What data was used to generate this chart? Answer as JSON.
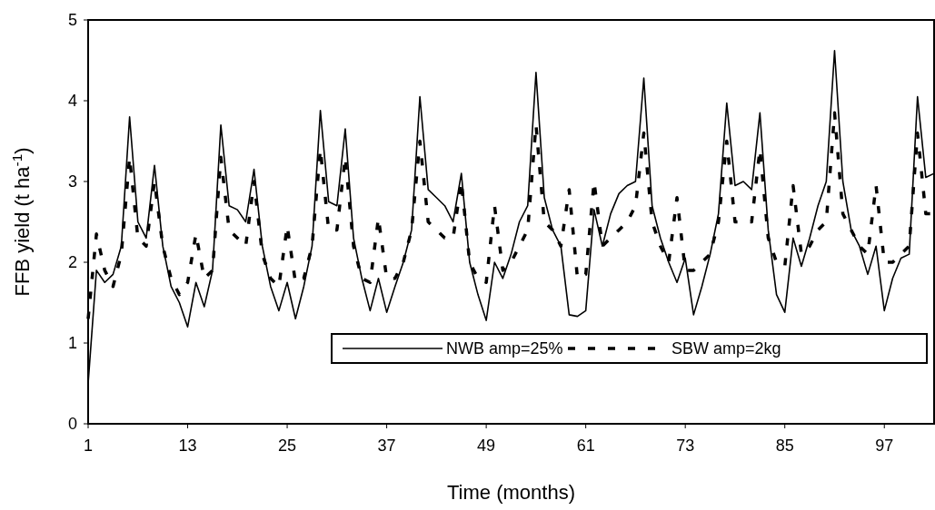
{
  "chart_data": {
    "type": "line",
    "xlabel": "Time (months)",
    "ylabel": "FFB yield (t ha$^{-1}$)",
    "x": [
      1,
      2,
      3,
      4,
      5,
      6,
      7,
      8,
      9,
      10,
      11,
      12,
      13,
      14,
      15,
      16,
      17,
      18,
      19,
      20,
      21,
      22,
      23,
      24,
      25,
      26,
      27,
      28,
      29,
      30,
      31,
      32,
      33,
      34,
      35,
      36,
      37,
      38,
      39,
      40,
      41,
      42,
      43,
      44,
      45,
      46,
      47,
      48,
      49,
      50,
      51,
      52,
      53,
      54,
      55,
      56,
      57,
      58,
      59,
      60,
      61,
      62,
      63,
      64,
      65,
      66,
      67,
      68,
      69,
      70,
      71,
      72,
      73,
      74,
      75,
      76,
      77,
      78,
      79,
      80,
      81,
      82,
      83,
      84,
      85,
      86,
      87,
      88,
      89,
      90,
      91,
      92,
      93,
      94,
      95,
      96,
      97,
      98,
      99,
      100,
      101,
      102,
      103
    ],
    "series": [
      {
        "name": "NWB amp=25%",
        "color": "#000000",
        "line_style": "solid",
        "values": [
          0.5,
          1.9,
          1.75,
          1.85,
          2.2,
          3.8,
          2.5,
          2.3,
          3.2,
          2.2,
          1.7,
          1.5,
          1.2,
          1.75,
          1.45,
          1.9,
          3.7,
          2.7,
          2.65,
          2.5,
          3.15,
          2.2,
          1.7,
          1.4,
          1.75,
          1.3,
          1.7,
          2.2,
          3.88,
          2.75,
          2.7,
          3.65,
          2.3,
          1.8,
          1.4,
          1.8,
          1.38,
          1.7,
          2.0,
          2.4,
          4.05,
          2.9,
          2.8,
          2.7,
          2.5,
          3.1,
          2.0,
          1.6,
          1.28,
          2.0,
          1.8,
          2.1,
          2.5,
          2.7,
          4.35,
          2.8,
          2.4,
          2.2,
          1.35,
          1.33,
          1.4,
          2.65,
          2.2,
          2.6,
          2.85,
          2.95,
          3.0,
          4.28,
          2.7,
          2.3,
          2.0,
          1.75,
          2.05,
          1.35,
          1.7,
          2.1,
          2.6,
          3.97,
          2.95,
          3.0,
          2.9,
          3.85,
          2.4,
          1.6,
          1.38,
          2.3,
          1.95,
          2.3,
          2.7,
          3.0,
          4.62,
          3.0,
          2.4,
          2.2,
          1.85,
          2.2,
          1.4,
          1.8,
          2.05,
          2.1,
          4.05,
          3.05,
          3.1
        ]
      },
      {
        "name": "SBW amp=2kg",
        "color": "#000000",
        "line_style": "dashed",
        "values": [
          1.3,
          2.35,
          1.9,
          1.7,
          2.1,
          3.3,
          2.3,
          2.2,
          3.0,
          2.2,
          1.8,
          1.6,
          1.75,
          2.35,
          1.8,
          1.9,
          3.3,
          2.4,
          2.3,
          2.2,
          3.0,
          2.1,
          1.8,
          1.7,
          2.45,
          1.75,
          1.8,
          2.2,
          3.4,
          2.4,
          2.4,
          3.3,
          2.2,
          1.8,
          1.75,
          2.55,
          1.8,
          1.8,
          2.0,
          2.4,
          3.5,
          2.5,
          2.4,
          2.3,
          2.3,
          3.0,
          2.0,
          1.8,
          1.75,
          2.7,
          1.9,
          2.0,
          2.2,
          2.4,
          3.7,
          2.5,
          2.4,
          2.2,
          2.9,
          1.8,
          1.85,
          3.0,
          2.2,
          2.3,
          2.4,
          2.5,
          2.7,
          3.6,
          2.5,
          2.2,
          2.0,
          2.8,
          1.9,
          1.9,
          2.0,
          2.1,
          2.5,
          3.5,
          2.5,
          2.5,
          2.5,
          3.4,
          2.3,
          2.0,
          1.95,
          2.95,
          2.1,
          2.2,
          2.4,
          2.5,
          3.85,
          2.6,
          2.4,
          2.2,
          2.1,
          2.95,
          2.0,
          2.0,
          2.1,
          2.2,
          3.6,
          2.6,
          2.6
        ]
      }
    ],
    "xlim": [
      1,
      103
    ],
    "xticks": [
      1,
      13,
      25,
      37,
      49,
      61,
      73,
      85,
      97
    ],
    "ylim": [
      0,
      5
    ],
    "yticks": [
      0,
      1,
      2,
      3,
      4,
      5
    ],
    "grid": false,
    "legend": "bottom right"
  }
}
